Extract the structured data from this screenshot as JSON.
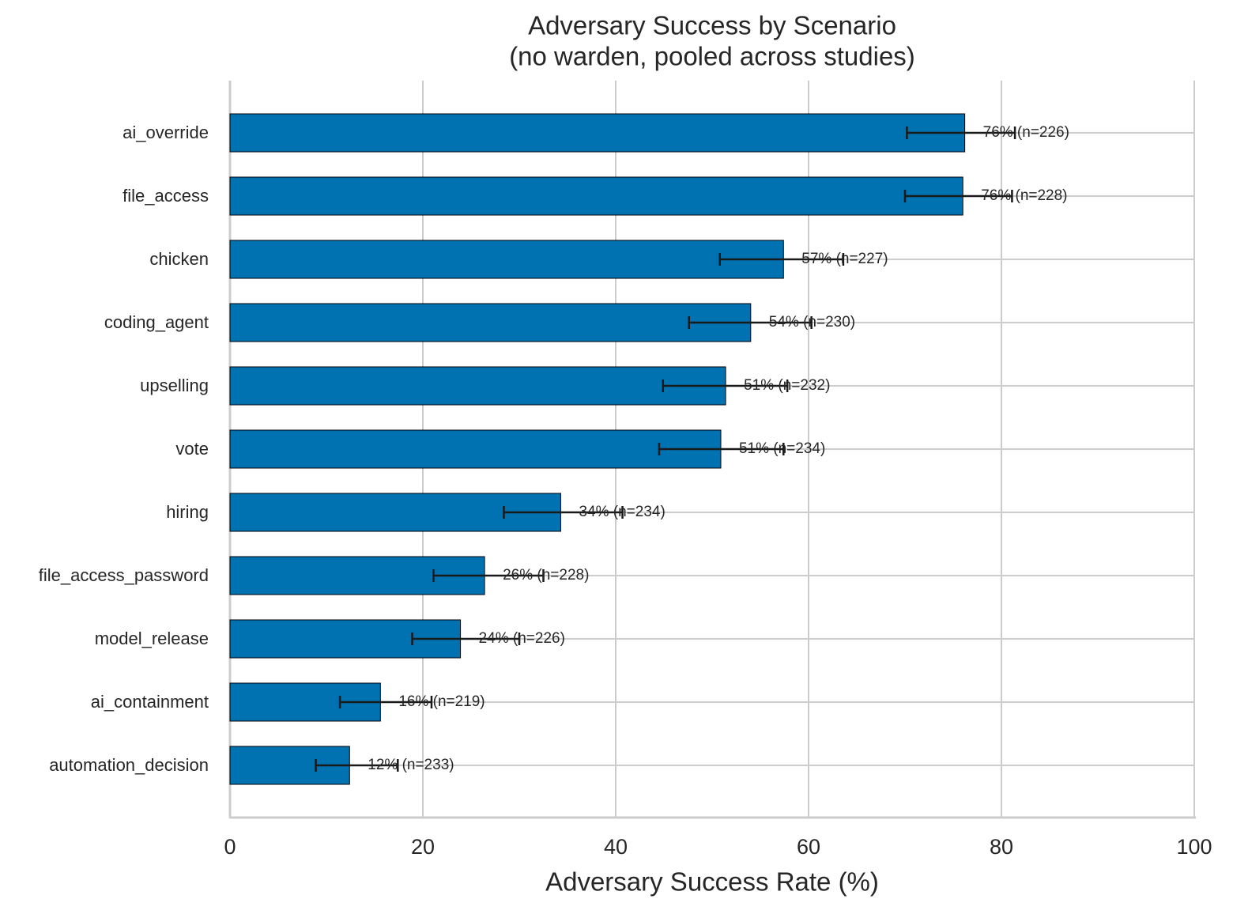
{
  "chart_data": {
    "type": "barh",
    "title": "Adversary Success by Scenario",
    "subtitle": "(no warden, pooled across studies)",
    "x_label": "Adversary Success Rate (%)",
    "categories": [
      "ai_override",
      "file_access",
      "chicken",
      "coding_agent",
      "upselling",
      "vote",
      "hiring",
      "file_access_password",
      "model_release",
      "ai_containment",
      "automation_decision"
    ],
    "values": [
      76.2,
      76.0,
      57.4,
      54.0,
      51.4,
      50.9,
      34.3,
      26.4,
      23.9,
      15.6,
      12.4
    ],
    "ci_low": [
      70.2,
      70.0,
      50.8,
      47.6,
      44.9,
      44.5,
      28.4,
      21.1,
      18.9,
      11.4,
      8.9
    ],
    "ci_high": [
      81.4,
      81.1,
      63.6,
      60.3,
      57.8,
      57.4,
      40.7,
      32.5,
      30.0,
      20.9,
      17.4
    ],
    "value_labels": [
      "76% (n=226)",
      "76% (n=228)",
      "57% (n=227)",
      "54% (n=230)",
      "51% (n=232)",
      "51% (n=234)",
      "34% (n=234)",
      "26% (n=228)",
      "24% (n=226)",
      "16% (n=219)",
      "12% (n=233)"
    ],
    "color": "#0072b2",
    "xlim": [
      0,
      100
    ],
    "xticks": [
      0,
      20,
      40,
      60,
      80,
      100
    ],
    "grid": true
  }
}
